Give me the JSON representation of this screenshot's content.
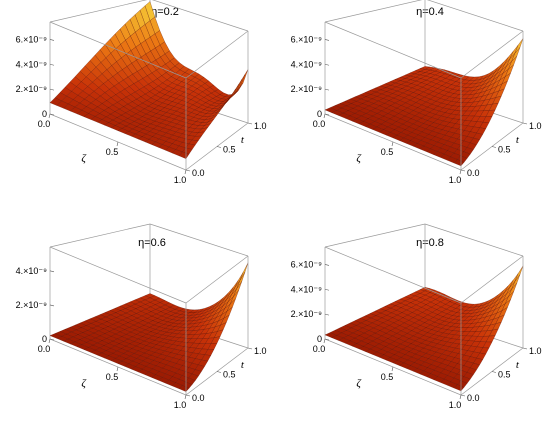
{
  "chart_data": [
    {
      "type": "surface3d",
      "title": "η=0.2",
      "eta": 0.2,
      "xlabel": "ζ",
      "ylabel": "t",
      "x_ticks": [
        "0.0",
        "0.5",
        "1.0"
      ],
      "y_ticks": [
        "0.0",
        "0.5",
        "1.0"
      ],
      "z_ticks": [
        "0",
        "2.×10⁻⁹",
        "4.×10⁻⁹",
        "6.×10⁻⁹"
      ],
      "z_tick_values": [
        0,
        2e-09,
        4e-09,
        6e-09
      ],
      "zlim": [
        0,
        7.4e-09
      ],
      "peak": 7.2e-09,
      "peak_at": "zeta=0, t=1",
      "colormap": [
        "#8a1200",
        "#c83208",
        "#ec7a14",
        "#f6d23a"
      ]
    },
    {
      "type": "surface3d",
      "title": "η=0.4",
      "eta": 0.4,
      "xlabel": "ζ",
      "ylabel": "t",
      "x_ticks": [
        "0.0",
        "0.5",
        "1.0"
      ],
      "y_ticks": [
        "0.0",
        "0.5",
        "1.0"
      ],
      "z_ticks": [
        "0",
        "2.×10⁻⁹",
        "4.×10⁻⁹",
        "6.×10⁻⁹"
      ],
      "z_tick_values": [
        0,
        2e-09,
        4e-09,
        6e-09
      ],
      "zlim": [
        0,
        7.4e-09
      ],
      "peak": 6.8e-09,
      "peak_at": "zeta=0.95, t=1",
      "colormap": [
        "#8a1200",
        "#c83208",
        "#ec7a14",
        "#f6d23a"
      ]
    },
    {
      "type": "surface3d",
      "title": "η=0.6",
      "eta": 0.6,
      "xlabel": "ζ",
      "ylabel": "t",
      "x_ticks": [
        "0.0",
        "0.5",
        "1.0"
      ],
      "y_ticks": [
        "0.0",
        "0.5",
        "1.0"
      ],
      "z_ticks": [
        "0",
        "2.×10⁻⁹",
        "4.×10⁻⁹"
      ],
      "z_tick_values": [
        0,
        2e-09,
        4e-09
      ],
      "zlim": [
        0,
        5.4e-09
      ],
      "peak": 5e-09,
      "peak_at": "zeta=0.95, t=1",
      "colormap": [
        "#8a1200",
        "#c83208",
        "#ec7a14",
        "#f6d23a"
      ]
    },
    {
      "type": "surface3d",
      "title": "η=0.8",
      "eta": 0.8,
      "xlabel": "ζ",
      "ylabel": "t",
      "x_ticks": [
        "0.0",
        "0.5",
        "1.0"
      ],
      "y_ticks": [
        "0.0",
        "0.5",
        "1.0"
      ],
      "z_ticks": [
        "0",
        "2.×10⁻⁹",
        "4.×10⁻⁹",
        "6.×10⁻⁹"
      ],
      "z_tick_values": [
        0,
        2e-09,
        4e-09,
        6e-09
      ],
      "zlim": [
        0,
        7.4e-09
      ],
      "peak": 6.6e-09,
      "peak_at": "zeta=0.95, t=1",
      "colormap": [
        "#8a1200",
        "#c83208",
        "#ec7a14",
        "#f6d23a"
      ]
    }
  ]
}
